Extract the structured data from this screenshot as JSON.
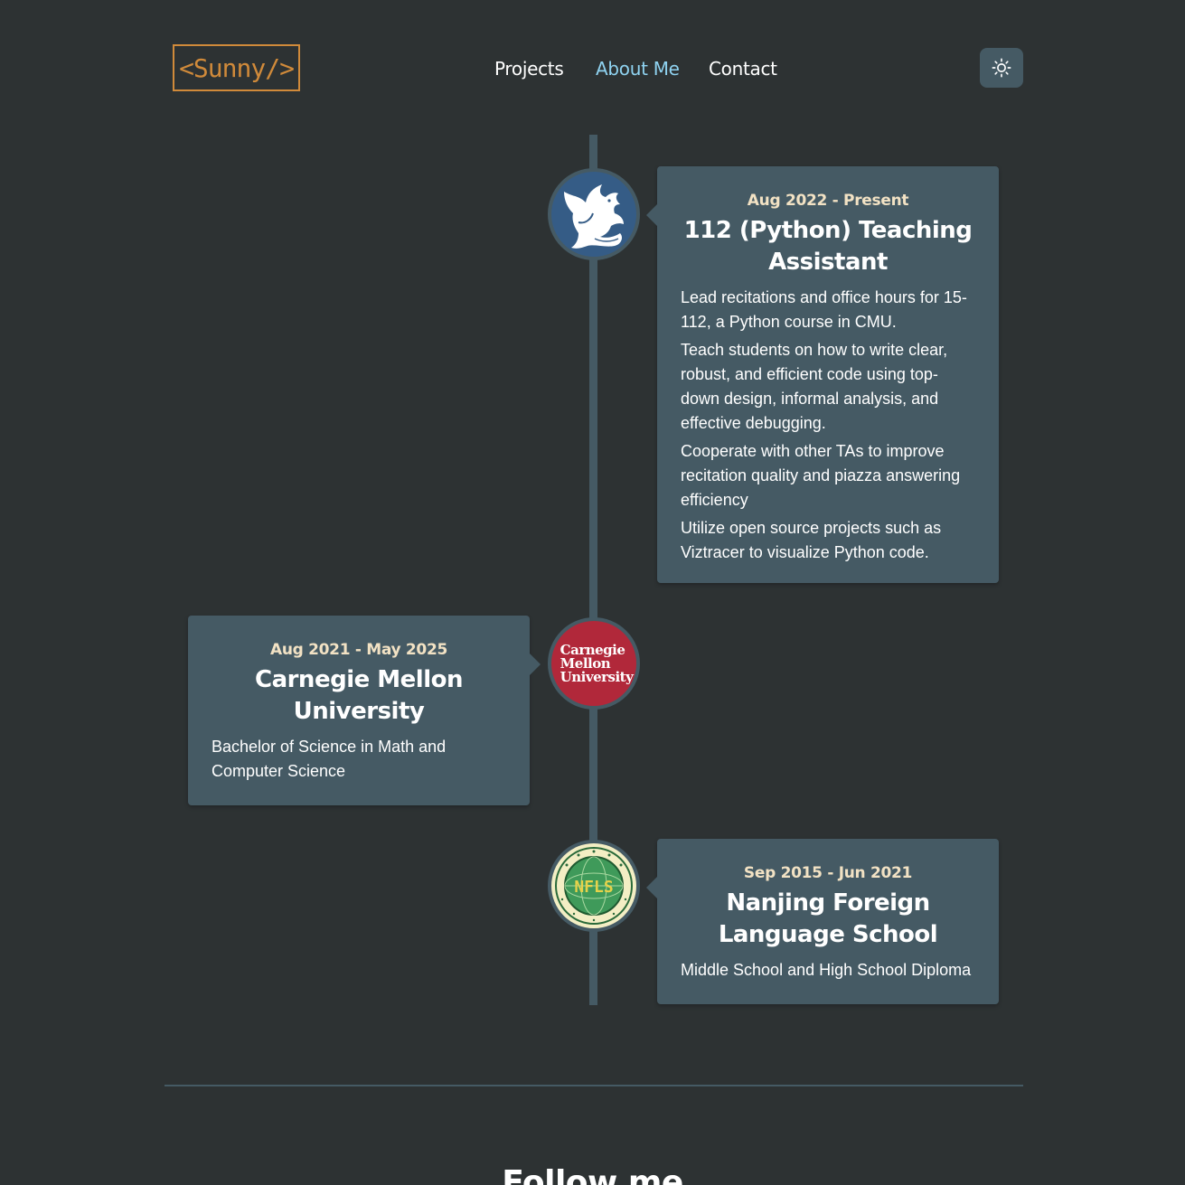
{
  "header": {
    "logo_text": "<Sunny/>",
    "nav": [
      {
        "label": "Projects",
        "active": false
      },
      {
        "label": "About Me",
        "active": true
      },
      {
        "label": "Contact",
        "active": false
      }
    ],
    "theme_toggle_icon": "sun-icon"
  },
  "timeline": [
    {
      "date": "Aug 2022 - Present",
      "title": "112 (Python) Teaching Assistant",
      "icon": "cmu-dragon-logo",
      "description": [
        "Lead recitations and office hours for 15-112, a Python course in CMU.",
        "Teach students on how to write clear, robust, and efficient code using top-down design, informal analysis, and effective debugging.",
        "Cooperate with other TAs to improve recitation quality and piazza answering efficiency",
        "Utilize open source projects such as Viztracer to visualize Python code."
      ]
    },
    {
      "date": "Aug 2021 - May 2025",
      "title": "Carnegie Mellon University",
      "icon": "cmu-wordmark-logo",
      "logo_text": [
        "Carnegie",
        "Mellon",
        "University"
      ],
      "description": [
        "Bachelor of Science in Math and Computer Science"
      ]
    },
    {
      "date": "Sep 2015 - Jun 2021",
      "title": "Nanjing Foreign Language School",
      "icon": "nfls-seal-logo",
      "logo_text": "NFLS",
      "description": [
        "Middle School and High School Diploma"
      ]
    }
  ],
  "footer": {
    "heading": "Follow me"
  },
  "colors": {
    "background": "#2d3233",
    "card": "#455a64",
    "accent_logo": "#d08a3a",
    "nav_active": "#8fd3f1",
    "date_text": "#f2e2c4",
    "cmu_red": "#b1283a",
    "dragon_blue": "#355c86"
  }
}
